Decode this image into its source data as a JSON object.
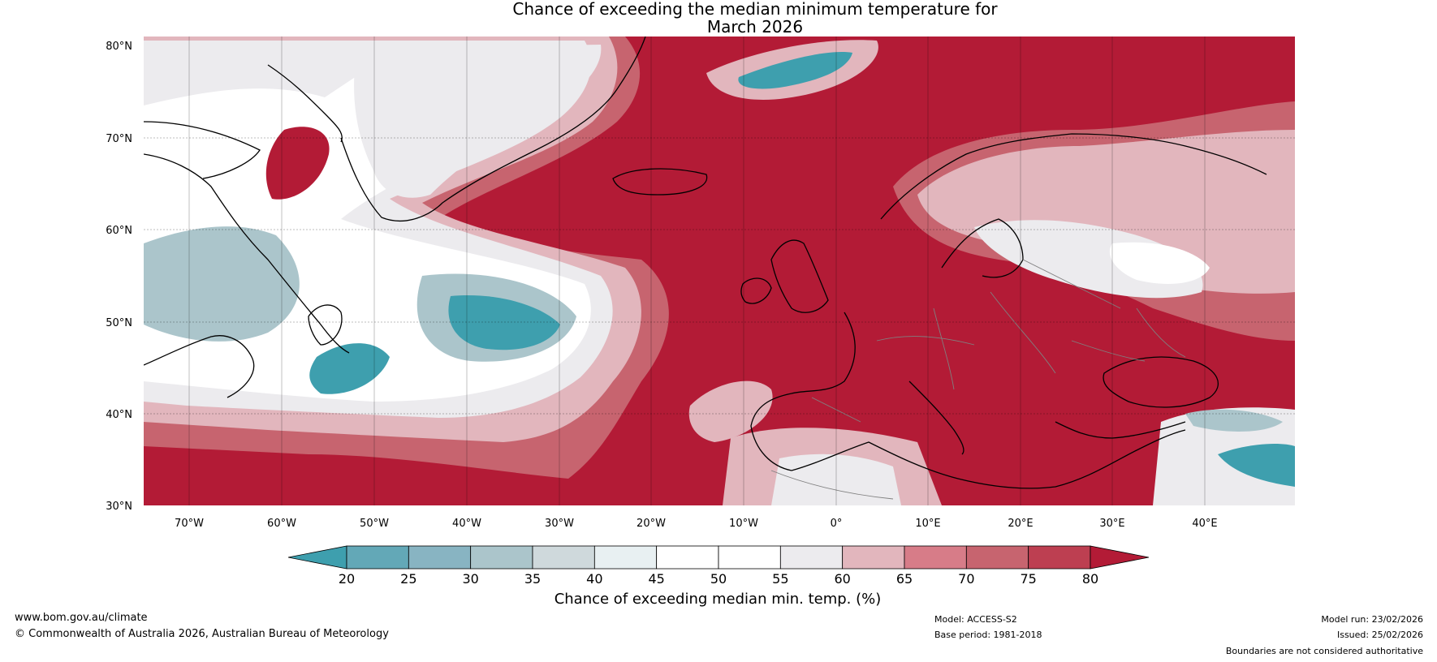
{
  "title": {
    "line1": "Chance of exceeding the median minimum temperature for",
    "line2": "March 2026"
  },
  "lat_labels": [
    "80°N",
    "70°N",
    "60°N",
    "50°N",
    "40°N",
    "30°N"
  ],
  "lon_labels": [
    "70°W",
    "60°W",
    "50°W",
    "40°W",
    "30°W",
    "20°W",
    "10°W",
    "0°",
    "10°E",
    "20°E",
    "30°E",
    "40°E"
  ],
  "colorbar": {
    "ticks": [
      "20",
      "25",
      "30",
      "35",
      "40",
      "45",
      "50",
      "55",
      "60",
      "65",
      "70",
      "75",
      "80"
    ],
    "label": "Chance of exceeding median min. temp. (%)",
    "colors": {
      "under": "#3e9fae",
      "bins": [
        "#63a8b7",
        "#88b4c2",
        "#abc5cb",
        "#cfd9dc",
        "#e8f0f2",
        "#ffffff",
        "#ffffff",
        "#ecebee",
        "#e2b6bd",
        "#d77c88",
        "#c7646f",
        "#bd3f51"
      ],
      "over": "#b31b36"
    }
  },
  "footer": {
    "url": "www.bom.gov.au/climate",
    "copyright": "© Commonwealth of Australia 2026, Australian Bureau of Meteorology",
    "model": "Model: ACCESS-S2",
    "base_period": "Base period: 1981-2018",
    "model_run": "Model run: 23/02/2026",
    "issued": "Issued: 25/02/2026",
    "disclaimer": "Boundaries are not considered authoritative"
  },
  "map": {
    "colors": {
      "hot": "#b31b36",
      "warm": "#c7646f",
      "mild": "#e2b6bd",
      "neutral": "#ecebee",
      "white": "#ffffff",
      "cool": "#abc5cb",
      "cold": "#3e9fae",
      "coast": "#000000",
      "border": "#808080"
    }
  }
}
